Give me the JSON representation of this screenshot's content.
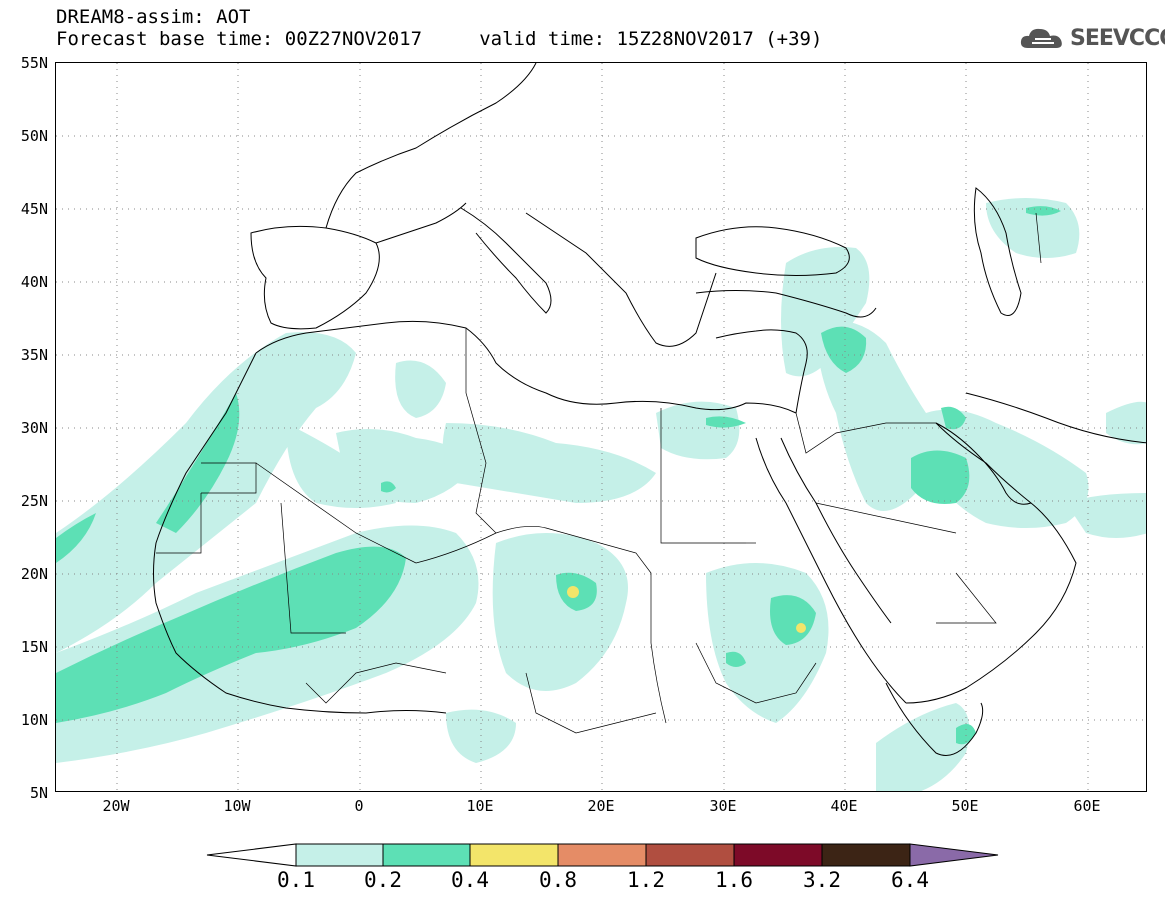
{
  "header": {
    "line1": "DREAM8-assim: AOT",
    "line2": "Forecast base time: 00Z27NOV2017     valid time: 15Z28NOV2017 (+39)"
  },
  "logo": {
    "text": "SEEVCCC",
    "icon": "cloud-icon"
  },
  "map": {
    "lat_labels": [
      "55N",
      "50N",
      "45N",
      "40N",
      "35N",
      "30N",
      "25N",
      "20N",
      "15N",
      "10N",
      "5N"
    ],
    "lon_labels": [
      "20W",
      "10W",
      "0",
      "10E",
      "20E",
      "30E",
      "40E",
      "50E",
      "60E"
    ],
    "extent": {
      "lon_min": -25,
      "lon_max": 65,
      "lat_min": 5,
      "lat_max": 55
    },
    "grid": "dotted"
  },
  "colorbar": {
    "labels": [
      "0.1",
      "0.2",
      "0.4",
      "0.8",
      "1.2",
      "1.6",
      "3.2",
      "6.4"
    ],
    "colors": [
      "#c5f0e8",
      "#5de0b5",
      "#f3e56a",
      "#e58c66",
      "#b04e40",
      "#7d0a28",
      "#3c2415",
      "#8a6aa8"
    ]
  },
  "colors": {
    "level_0_1": "#c5f0e8",
    "level_0_2": "#5de0b5",
    "level_0_4": "#f3e56a"
  }
}
